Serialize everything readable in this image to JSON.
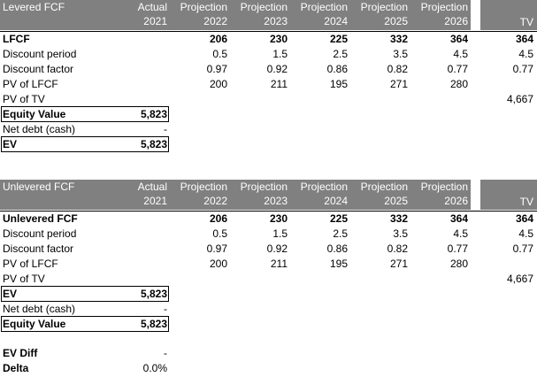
{
  "sections": [
    {
      "header": {
        "title": "Levered FCF",
        "columns": [
          {
            "line1": "Actual",
            "line2": "2021"
          },
          {
            "line1": "Projection",
            "line2": "2022"
          },
          {
            "line1": "Projection",
            "line2": "2023"
          },
          {
            "line1": "Projection",
            "line2": "2024"
          },
          {
            "line1": "Projection",
            "line2": "2025"
          },
          {
            "line1": "Projection",
            "line2": "2026"
          }
        ],
        "tv_label": "TV"
      },
      "rows": [
        {
          "label": "LFCF",
          "bold": true,
          "values": [
            "",
            "206",
            "230",
            "225",
            "332",
            "364"
          ],
          "tv": "364"
        },
        {
          "label": "Discount period",
          "bold": false,
          "values": [
            "",
            "0.5",
            "1.5",
            "2.5",
            "3.5",
            "4.5"
          ],
          "tv": "4.5"
        },
        {
          "label": "Discount factor",
          "bold": false,
          "values": [
            "",
            "0.97",
            "0.92",
            "0.86",
            "0.82",
            "0.77"
          ],
          "tv": "0.77"
        },
        {
          "label": "PV of LFCF",
          "bold": false,
          "values": [
            "",
            "200",
            "211",
            "195",
            "271",
            "280"
          ],
          "tv": ""
        },
        {
          "label": "PV of TV",
          "bold": false,
          "values": [
            "",
            "",
            "",
            "",
            "",
            ""
          ],
          "tv": "4,667"
        }
      ],
      "bridge": [
        {
          "label": "Equity Value",
          "bold": true,
          "value": "5,823"
        },
        {
          "label": "Net debt (cash)",
          "bold": false,
          "value": "-"
        },
        {
          "label": "EV",
          "bold": true,
          "value": "5,823"
        }
      ]
    },
    {
      "header": {
        "title": "Unlevered FCF",
        "columns": [
          {
            "line1": "Actual",
            "line2": "2021"
          },
          {
            "line1": "Projection",
            "line2": "2022"
          },
          {
            "line1": "Projection",
            "line2": "2023"
          },
          {
            "line1": "Projection",
            "line2": "2024"
          },
          {
            "line1": "Projection",
            "line2": "2025"
          },
          {
            "line1": "Projection",
            "line2": "2026"
          }
        ],
        "tv_label": "TV"
      },
      "rows": [
        {
          "label": "Unlevered FCF",
          "bold": true,
          "values": [
            "",
            "206",
            "230",
            "225",
            "332",
            "364"
          ],
          "tv": "364"
        },
        {
          "label": "Discount period",
          "bold": false,
          "values": [
            "",
            "0.5",
            "1.5",
            "2.5",
            "3.5",
            "4.5"
          ],
          "tv": "4.5"
        },
        {
          "label": "Discount factor",
          "bold": false,
          "values": [
            "",
            "0.97",
            "0.92",
            "0.86",
            "0.82",
            "0.77"
          ],
          "tv": "0.77"
        },
        {
          "label": "PV of LFCF",
          "bold": false,
          "values": [
            "",
            "200",
            "211",
            "195",
            "271",
            "280"
          ],
          "tv": ""
        },
        {
          "label": "PV of TV",
          "bold": false,
          "values": [
            "",
            "",
            "",
            "",
            "",
            ""
          ],
          "tv": "4,667"
        }
      ],
      "bridge": [
        {
          "label": "EV",
          "bold": true,
          "value": "5,823"
        },
        {
          "label": "Net debt (cash)",
          "bold": false,
          "value": "-"
        },
        {
          "label": "Equity Value",
          "bold": true,
          "value": "5,823"
        }
      ]
    }
  ],
  "check": [
    {
      "label": "EV Diff",
      "bold": true,
      "value": "-"
    },
    {
      "label": "Delta",
      "bold": true,
      "value": "0.0%"
    }
  ],
  "colors": {
    "header_band": "#808080",
    "header_text": "#ffffff"
  }
}
